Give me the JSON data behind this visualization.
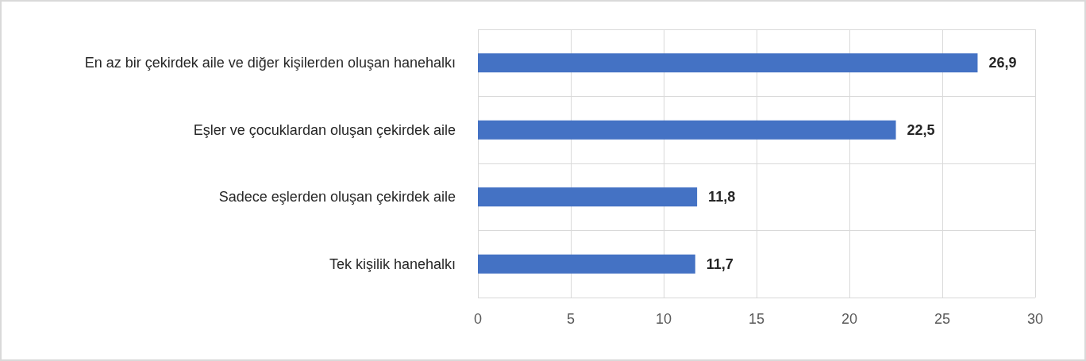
{
  "chart_data": {
    "type": "bar",
    "orientation": "horizontal",
    "categories": [
      "En az bir çekirdek aile ve diğer kişilerden oluşan hanehalkı",
      "Eşler ve çocuklardan oluşan çekirdek aile",
      "Sadece eşlerden oluşan çekirdek aile",
      "Tek kişilik hanehalkı"
    ],
    "values": [
      26.9,
      22.5,
      11.8,
      11.7
    ],
    "value_labels": [
      "26,9",
      "22,5",
      "11,8",
      "11,7"
    ],
    "color": "#4472c4",
    "xlim": [
      0,
      30
    ],
    "xticks": [
      0,
      5,
      10,
      15,
      20,
      25,
      30
    ],
    "grid": true
  }
}
